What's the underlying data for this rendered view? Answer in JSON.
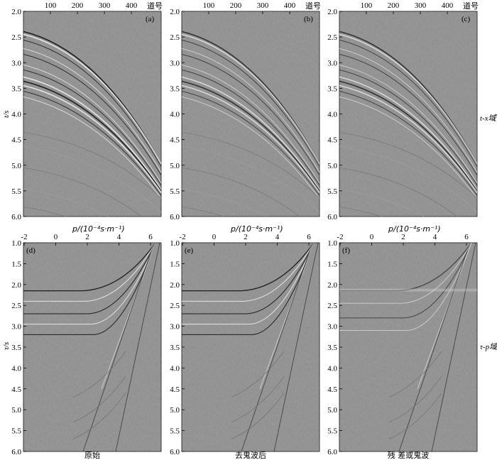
{
  "top_row": {
    "x_axis_label": "道号",
    "y_axis_label": "t/s",
    "domain_label": "t-x域",
    "x_ticks": [
      "100",
      "200",
      "300",
      "400"
    ],
    "y_ticks": [
      "2.0",
      "2.5",
      "3.0",
      "3.5",
      "4.0",
      "4.5",
      "5.0",
      "5.5",
      "6.0"
    ],
    "panels": [
      {
        "id": "a",
        "label": "(a)"
      },
      {
        "id": "b",
        "label": "(b)"
      },
      {
        "id": "c",
        "label": "(c)"
      }
    ]
  },
  "bottom_row": {
    "x_axis_label": "p/(10⁻⁴s·m⁻¹)",
    "y_axis_label": "τ/s",
    "domain_label": "τ-p域",
    "x_ticks": [
      "-2",
      "0",
      "2",
      "4",
      "6"
    ],
    "y_ticks": [
      "1.0",
      "1.5",
      "2.0",
      "2.5",
      "3.0",
      "3.5",
      "4.0",
      "4.5",
      "5.0",
      "5.5",
      "6.0"
    ],
    "panels": [
      {
        "id": "d",
        "label": "(d)",
        "caption": "原始"
      },
      {
        "id": "e",
        "label": "(e)",
        "caption": "去鬼波后"
      },
      {
        "id": "f",
        "label": "(f)",
        "caption": "残 差或鬼波"
      }
    ]
  },
  "colors": {
    "background": "#8a8a8a",
    "event_dark": "#1a1a1a",
    "event_light": "#f2f2f2"
  }
}
